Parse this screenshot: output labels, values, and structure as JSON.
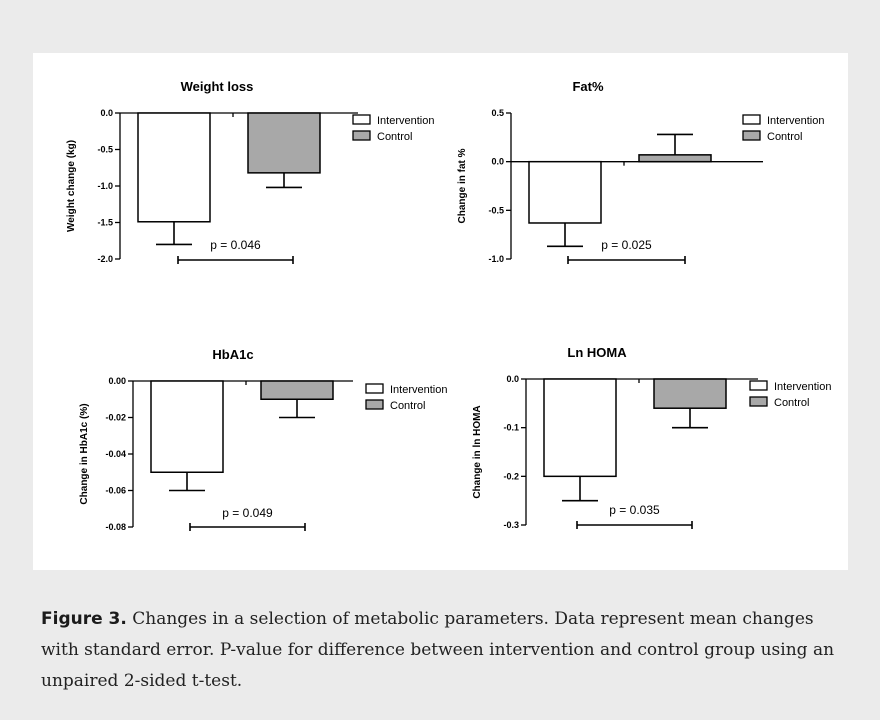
{
  "caption": {
    "label": "Figure 3.",
    "text": " Changes in a selection of metabolic parameters. Data represent mean changes with standard error. P-value for difference between intervention and control group using an unpaired 2-sided t-test."
  },
  "colors": {
    "background": "#ebebeb",
    "panel": "#ffffff",
    "intervention": "#ffffff",
    "control": "#a8a8a8",
    "stroke": "#000000"
  },
  "chart_data": [
    {
      "type": "bar",
      "title": "Weight loss",
      "ylabel": "Weight change (kg)",
      "categories": [
        "Intervention",
        "Control"
      ],
      "series": [
        {
          "name": "Intervention",
          "value": -1.49,
          "error": 0.31
        },
        {
          "name": "Control",
          "value": -0.82,
          "error": 0.2
        }
      ],
      "ylim": [
        -2.0,
        0.0
      ],
      "yticks": [
        0.0,
        -0.5,
        -1.0,
        -1.5,
        -2.0
      ],
      "ytick_labels": [
        "0.0",
        "-0.5",
        "-1.0",
        "-1.5",
        "-2.0"
      ],
      "annotation": "p = 0.046",
      "legend": [
        "Intervention",
        "Control"
      ],
      "legend_position": "right",
      "grid": false
    },
    {
      "type": "bar",
      "title": "Fat%",
      "ylabel": "Change in fat %",
      "categories": [
        "Intervention",
        "Control"
      ],
      "series": [
        {
          "name": "Intervention",
          "value": -0.63,
          "error": 0.24
        },
        {
          "name": "Control",
          "value": 0.07,
          "error": 0.21
        }
      ],
      "ylim": [
        -1.0,
        0.5
      ],
      "yticks": [
        0.5,
        0.0,
        -0.5,
        -1.0
      ],
      "ytick_labels": [
        "0.5",
        "0.0",
        "-0.5",
        "-1.0"
      ],
      "annotation": "p = 0.025",
      "legend": [
        "Intervention",
        "Control"
      ],
      "legend_position": "right",
      "grid": false
    },
    {
      "type": "bar",
      "title": "HbA1c",
      "ylabel": "Change in HbA1c (%)",
      "categories": [
        "Intervention",
        "Control"
      ],
      "series": [
        {
          "name": "Intervention",
          "value": -0.05,
          "error": 0.01
        },
        {
          "name": "Control",
          "value": -0.01,
          "error": 0.01
        }
      ],
      "ylim": [
        -0.08,
        0.0
      ],
      "yticks": [
        0.0,
        -0.02,
        -0.04,
        -0.06,
        -0.08
      ],
      "ytick_labels": [
        "0.00",
        "-0.02",
        "-0.04",
        "-0.06",
        "-0.08"
      ],
      "annotation": "p = 0.049",
      "legend": [
        "Intervention",
        "Control"
      ],
      "legend_position": "right",
      "grid": false
    },
    {
      "type": "bar",
      "title": "Ln HOMA",
      "ylabel": "Change in ln HOMA",
      "categories": [
        "Intervention",
        "Control"
      ],
      "series": [
        {
          "name": "Intervention",
          "value": -0.2,
          "error": 0.05
        },
        {
          "name": "Control",
          "value": -0.06,
          "error": 0.04
        }
      ],
      "ylim": [
        -0.3,
        0.0
      ],
      "yticks": [
        0.0,
        -0.1,
        -0.2,
        -0.3
      ],
      "ytick_labels": [
        "0.0",
        "-0.1",
        "-0.2",
        "-0.3"
      ],
      "annotation": "p = 0.035",
      "legend": [
        "Intervention",
        "Control"
      ],
      "legend_position": "right",
      "grid": false
    }
  ]
}
